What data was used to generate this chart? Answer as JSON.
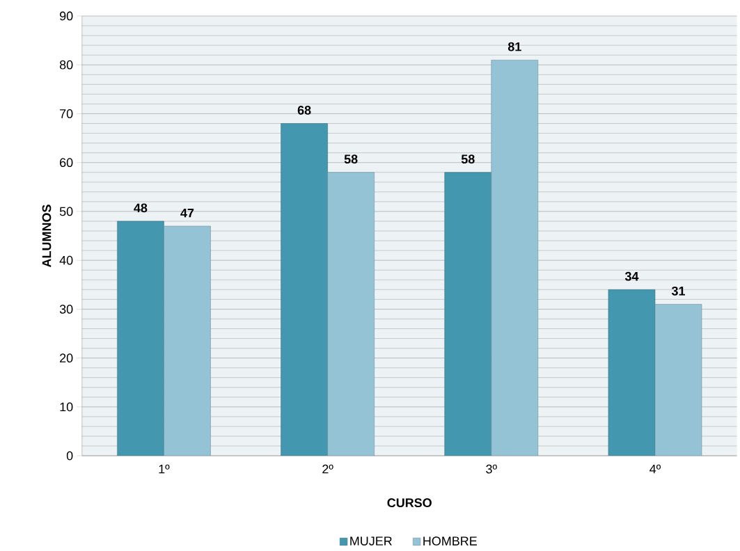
{
  "chart_data": {
    "type": "bar",
    "xlabel": "CURSO",
    "ylabel": "ALUMNOS",
    "categories": [
      "1º",
      "2º",
      "3º",
      "4º"
    ],
    "series": [
      {
        "name": "MUJER",
        "color": "#4397ae",
        "values": [
          48,
          68,
          58,
          34
        ]
      },
      {
        "name": "HOMBRE",
        "color": "#93c3d4",
        "values": [
          47,
          58,
          81,
          31
        ]
      }
    ],
    "ylim": [
      0,
      90
    ],
    "yticks": [
      0,
      10,
      20,
      30,
      40,
      50,
      60,
      70,
      80,
      90
    ],
    "grid": "y",
    "legend": "bottom",
    "data_labels": true
  }
}
